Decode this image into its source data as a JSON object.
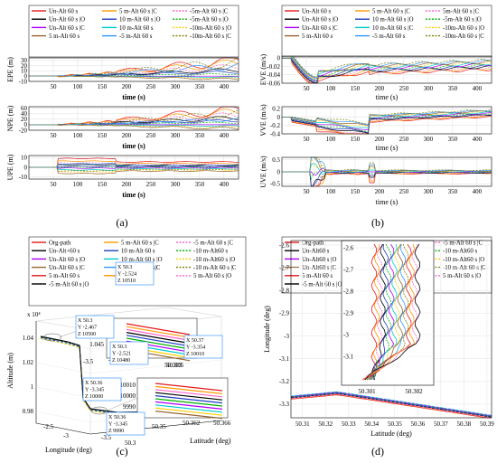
{
  "chart_data": [
    {
      "type": "line",
      "panel": "(a)",
      "legend": [
        "Un-Alt 60 s",
        "5 m-Alt 60 s |C",
        "-5m-Alt 60 s |C",
        "Un-Alt 60 s |O",
        "10 m-Alt 60 s |O",
        "-5m-Alt 60 s |O",
        "Un-Alt 60 s |C",
        "10 m-Alt 60 s",
        "-10m-Alt 60 s |O",
        "5 m-Alt 60 s",
        "-5 m-Alt 60 s",
        "-10m-Alt 60 s |C"
      ],
      "xlabel": "time (s)",
      "x_ticks": [
        50,
        100,
        150,
        200,
        250,
        300,
        350,
        400
      ],
      "subplots": [
        {
          "ylabel": "EPE (m)",
          "y_ticks": [
            -10,
            0,
            10,
            20,
            30
          ],
          "ylim": [
            -10,
            35
          ],
          "series_final_values": [
            30,
            25,
            18,
            12,
            8,
            4,
            0,
            -2,
            -4,
            -6,
            20,
            27
          ]
        },
        {
          "ylabel": "NPE (m)",
          "y_ticks": [
            -20,
            0,
            20,
            40,
            60
          ],
          "ylim": [
            -20,
            65
          ],
          "series_final_values": [
            55,
            45,
            35,
            25,
            15,
            8,
            0,
            -5,
            -10,
            -15,
            20,
            40
          ]
        },
        {
          "ylabel": "UPE (m)",
          "y_ticks": [
            -10,
            0,
            10
          ],
          "ylim": [
            -12,
            12
          ],
          "series_final_values": [
            10,
            7,
            5,
            3,
            1,
            0,
            -1,
            -3,
            -5,
            -7,
            4,
            -4
          ]
        }
      ]
    },
    {
      "type": "line",
      "panel": "(b)",
      "legend": [
        "Un-Alt 60 s",
        "5 m-Alt 60 s |C",
        "5m-Alt 60 s |C",
        "Un-Alt 60 s |O",
        "10 m-Alt 60 s |O",
        "-5m-Alt 60 s |O",
        "Un-Alt 60 s |C",
        "10 m-Alt 60 s |C",
        "-10m-Alt 60 s |O",
        "5 m-Alt 60 s",
        "-5 m-Alt 60 s",
        "-10m-Alt 60 s |C"
      ],
      "xlabel": "time (s)",
      "x_ticks": [
        50,
        100,
        150,
        200,
        250,
        300,
        350,
        400
      ],
      "subplots": [
        {
          "ylabel": "EVE (m/s)",
          "y_ticks": [
            -0.06,
            -0.04,
            -0.02,
            0
          ],
          "ylim": [
            -0.06,
            0.005
          ]
        },
        {
          "ylabel": "VVE (m/s)",
          "y_ticks": [
            -0.4,
            -0.2,
            0,
            0.2
          ],
          "ylim": [
            -0.4,
            0.25
          ]
        },
        {
          "ylabel": "UVE (m/s)",
          "y_ticks": [
            -0.5,
            0,
            0.5
          ],
          "ylim": [
            -0.6,
            0.6
          ]
        }
      ]
    },
    {
      "type": "line",
      "panel": "(c)",
      "legend": [
        "Org-path",
        "5 m-Alt 60 s |C",
        "-5 m-Alt 60 s |C",
        "Un-Alt+60 s",
        "10 m-Alt 60 s",
        "-10 m-Alt60 s",
        "Un-Alt 60 s |O",
        "10 m-Alt 60 s |O",
        "-10 m-Alt60 s |O",
        "Un-Alt 60 s |C",
        "10 m-Alt 60 s|C",
        "-10 m-Alt 60 s |C",
        "5 m-Alt 60 s",
        "-5 m-Alt 60 s",
        "5 m-Alt 60 s |O",
        "-5 m-Alt 60 s |O"
      ],
      "xlabel": "Longitude (deg)",
      "ylabel": "Latitude (deg)",
      "zlabel": "Altitude (m)",
      "z_ticks": [
        "0.98",
        "1",
        "1.02",
        "1.04"
      ],
      "z_exponent": "x 10⁴",
      "lon_ticks": [
        "-2.5",
        "-3",
        "-3.5"
      ],
      "lat_ticks": [
        "50.3",
        "50.35",
        "50.4"
      ],
      "inset_z_ticks": [
        "1.0505",
        "1.05",
        "1.045"
      ],
      "inset2_z_ticks": [
        "10000",
        "10010",
        "9990"
      ],
      "inset_x_ticks": [
        "50.305",
        "50.303",
        "50.362",
        "50.366"
      ],
      "inset_y_tick": "-2.52",
      "inset_y_tick2": "-3.35",
      "inset_y_tick3": "-3.5",
      "datatips": [
        {
          "X": "50.3",
          "Y": "-2.524",
          "Z": "10510"
        },
        {
          "X": "50.3",
          "Y": "-2.467",
          "Z": "10500"
        },
        {
          "X": "50.3",
          "Y": "-2.521",
          "Z": "10480"
        },
        {
          "X": "50.37",
          "Y": "-3.354",
          "Z": "10010"
        },
        {
          "X": "50.36",
          "Y": "-3.345",
          "Z": "10000"
        },
        {
          "X": "50.36",
          "Y": "-3.345",
          "Z": "9990"
        }
      ]
    },
    {
      "type": "line",
      "panel": "(d)",
      "legend": [
        "Org-path",
        "5 m-Alt60 s |C",
        "-5 m-Alt 60 s |C",
        "Un-Alt60 s",
        "10 m-Alt60 s",
        "-10 m-Alt60 s",
        "Un-Alt60 s |O",
        "10 m-Alt60 s |O",
        "-10 m-Alt60 s |O",
        "Un-Alt60 s |C",
        "10 m-Alt 60 s|C",
        "-10 m-Alt 60 s |C",
        "5 m-Alt 60 s",
        "-5 m-Alt 60 s",
        "5 m-Alt 60 s |O",
        "-5 m-Alt 60 s |O"
      ],
      "xlabel": "Latitude (deg)",
      "ylabel": "Longitude (deg)",
      "x_ticks": [
        "50.31",
        "50.32",
        "50.33",
        "50.34",
        "50.35",
        "50.36",
        "50.37",
        "50.38",
        "50.39"
      ],
      "y_ticks": [
        "-2.6",
        "-2.7",
        "-2.8",
        "-2.9",
        "-3",
        "-3.1",
        "-3.2",
        "-3.3"
      ],
      "inset_y_ticks": [
        "-2.6",
        "-2.7",
        "-2.8",
        "-2.9",
        "-3",
        "-3.1"
      ],
      "inset_x_ticks": [
        "50.301",
        "50.302"
      ]
    }
  ],
  "captions": [
    "(a)",
    "(b)",
    "(c)",
    "(d)"
  ],
  "colors": [
    "#e41a1c",
    "#ff9900",
    "#ff66cc",
    "#000000",
    "#1f3fbf",
    "#00b000",
    "#b000ff",
    "#00cccc",
    "#ffcc00",
    "#996633",
    "#3399ff",
    "#7f7f00"
  ]
}
